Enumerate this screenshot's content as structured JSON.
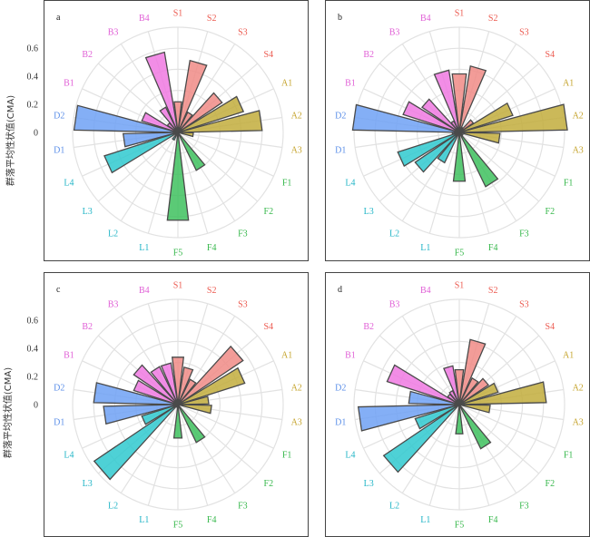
{
  "figure": {
    "ylabel": "群落平均性状值(CMA)"
  },
  "chart_data": [
    {
      "type": "polar-bar",
      "panel_label": "a",
      "ylabel": "群落平均性状值(CMA)",
      "rlim": [
        0,
        0.75
      ],
      "rticks": [
        0,
        0.2,
        0.4,
        0.6
      ],
      "rtick_labels": [
        "0",
        "0.2",
        "0.4",
        "0.6"
      ],
      "grid": true,
      "categories": [
        "S1",
        "S2",
        "S3",
        "S4",
        "A1",
        "A2",
        "A3",
        "F1",
        "F2",
        "F3",
        "F4",
        "F5",
        "L1",
        "L2",
        "L3",
        "L4",
        "D1",
        "D2",
        "B1",
        "B2",
        "B3",
        "B4"
      ],
      "values": [
        0.22,
        0.52,
        0.16,
        0.38,
        0.49,
        0.6,
        0.11,
        0.01,
        0.01,
        0.3,
        0.02,
        0.63,
        0.01,
        0.06,
        0.02,
        0.55,
        0.39,
        0.74,
        0.27,
        0.09,
        0.2,
        0.58
      ]
    },
    {
      "type": "polar-bar",
      "panel_label": "b",
      "ylabel": "",
      "rlim": [
        0,
        0.75
      ],
      "rticks": [
        0,
        0.2,
        0.4,
        0.6
      ],
      "rtick_labels": [],
      "grid": true,
      "categories": [
        "S1",
        "S2",
        "S3",
        "S4",
        "A1",
        "A2",
        "A3",
        "F1",
        "F2",
        "F3",
        "F4",
        "F5",
        "L1",
        "L2",
        "L3",
        "L4",
        "D1",
        "D2",
        "B1",
        "B2",
        "B3",
        "B4"
      ],
      "values": [
        0.42,
        0.48,
        0.04,
        0.12,
        0.4,
        0.77,
        0.29,
        0.02,
        0.03,
        0.43,
        0.02,
        0.35,
        0.01,
        0.24,
        0.38,
        0.46,
        0.05,
        0.76,
        0.42,
        0.32,
        0.09,
        0.45
      ]
    },
    {
      "type": "polar-bar",
      "panel_label": "c",
      "ylabel": "群落平均性状值(CMA)",
      "rlim": [
        0,
        0.75
      ],
      "rticks": [
        0,
        0.2,
        0.4,
        0.6
      ],
      "rtick_labels": [
        "0",
        "0.2",
        "0.4",
        "0.6"
      ],
      "grid": true,
      "categories": [
        "S1",
        "S2",
        "S3",
        "S4",
        "A1",
        "A2",
        "A3",
        "F1",
        "F2",
        "F3",
        "F4",
        "F5",
        "L1",
        "L2",
        "L3",
        "L4",
        "D1",
        "D2",
        "B1",
        "B2",
        "B3",
        "B4"
      ],
      "values": [
        0.34,
        0.27,
        0.2,
        0.56,
        0.5,
        0.22,
        0.24,
        0.01,
        0.01,
        0.3,
        0.01,
        0.24,
        0.01,
        0.02,
        0.72,
        0.27,
        0.53,
        0.6,
        0.33,
        0.38,
        0.3,
        0.3
      ]
    },
    {
      "type": "polar-bar",
      "panel_label": "d",
      "ylabel": "",
      "rlim": [
        0,
        0.75
      ],
      "rticks": [
        0,
        0.2,
        0.4,
        0.6
      ],
      "rtick_labels": [],
      "grid": true,
      "categories": [
        "S1",
        "S2",
        "S3",
        "S4",
        "A1",
        "A2",
        "A3",
        "F1",
        "F2",
        "F3",
        "F4",
        "F5",
        "L1",
        "L2",
        "L3",
        "L4",
        "D1",
        "D2",
        "B1",
        "B2",
        "B3",
        "B4"
      ],
      "values": [
        0.25,
        0.47,
        0.21,
        0.25,
        0.29,
        0.62,
        0.22,
        0.01,
        0.01,
        0.35,
        0.01,
        0.21,
        0.01,
        0.01,
        0.65,
        0.33,
        0.72,
        0.36,
        0.54,
        0.1,
        0.11,
        0.28
      ]
    }
  ],
  "colors": {
    "S": "#f08b86",
    "A": "#c2ad3c",
    "F": "#3ec15e",
    "L": "#2fc9cf",
    "D": "#6ea1f5",
    "B": "#f079e2",
    "S_text": "#ec5a50",
    "A_text": "#c6a52f",
    "F_text": "#38b84d",
    "L_text": "#25b6c7",
    "D_text": "#5c8fe8",
    "B_text": "#e05fd6",
    "bar_edge": "#4a4a4a",
    "grid": "#e2e2e2",
    "frame": "#444444"
  }
}
